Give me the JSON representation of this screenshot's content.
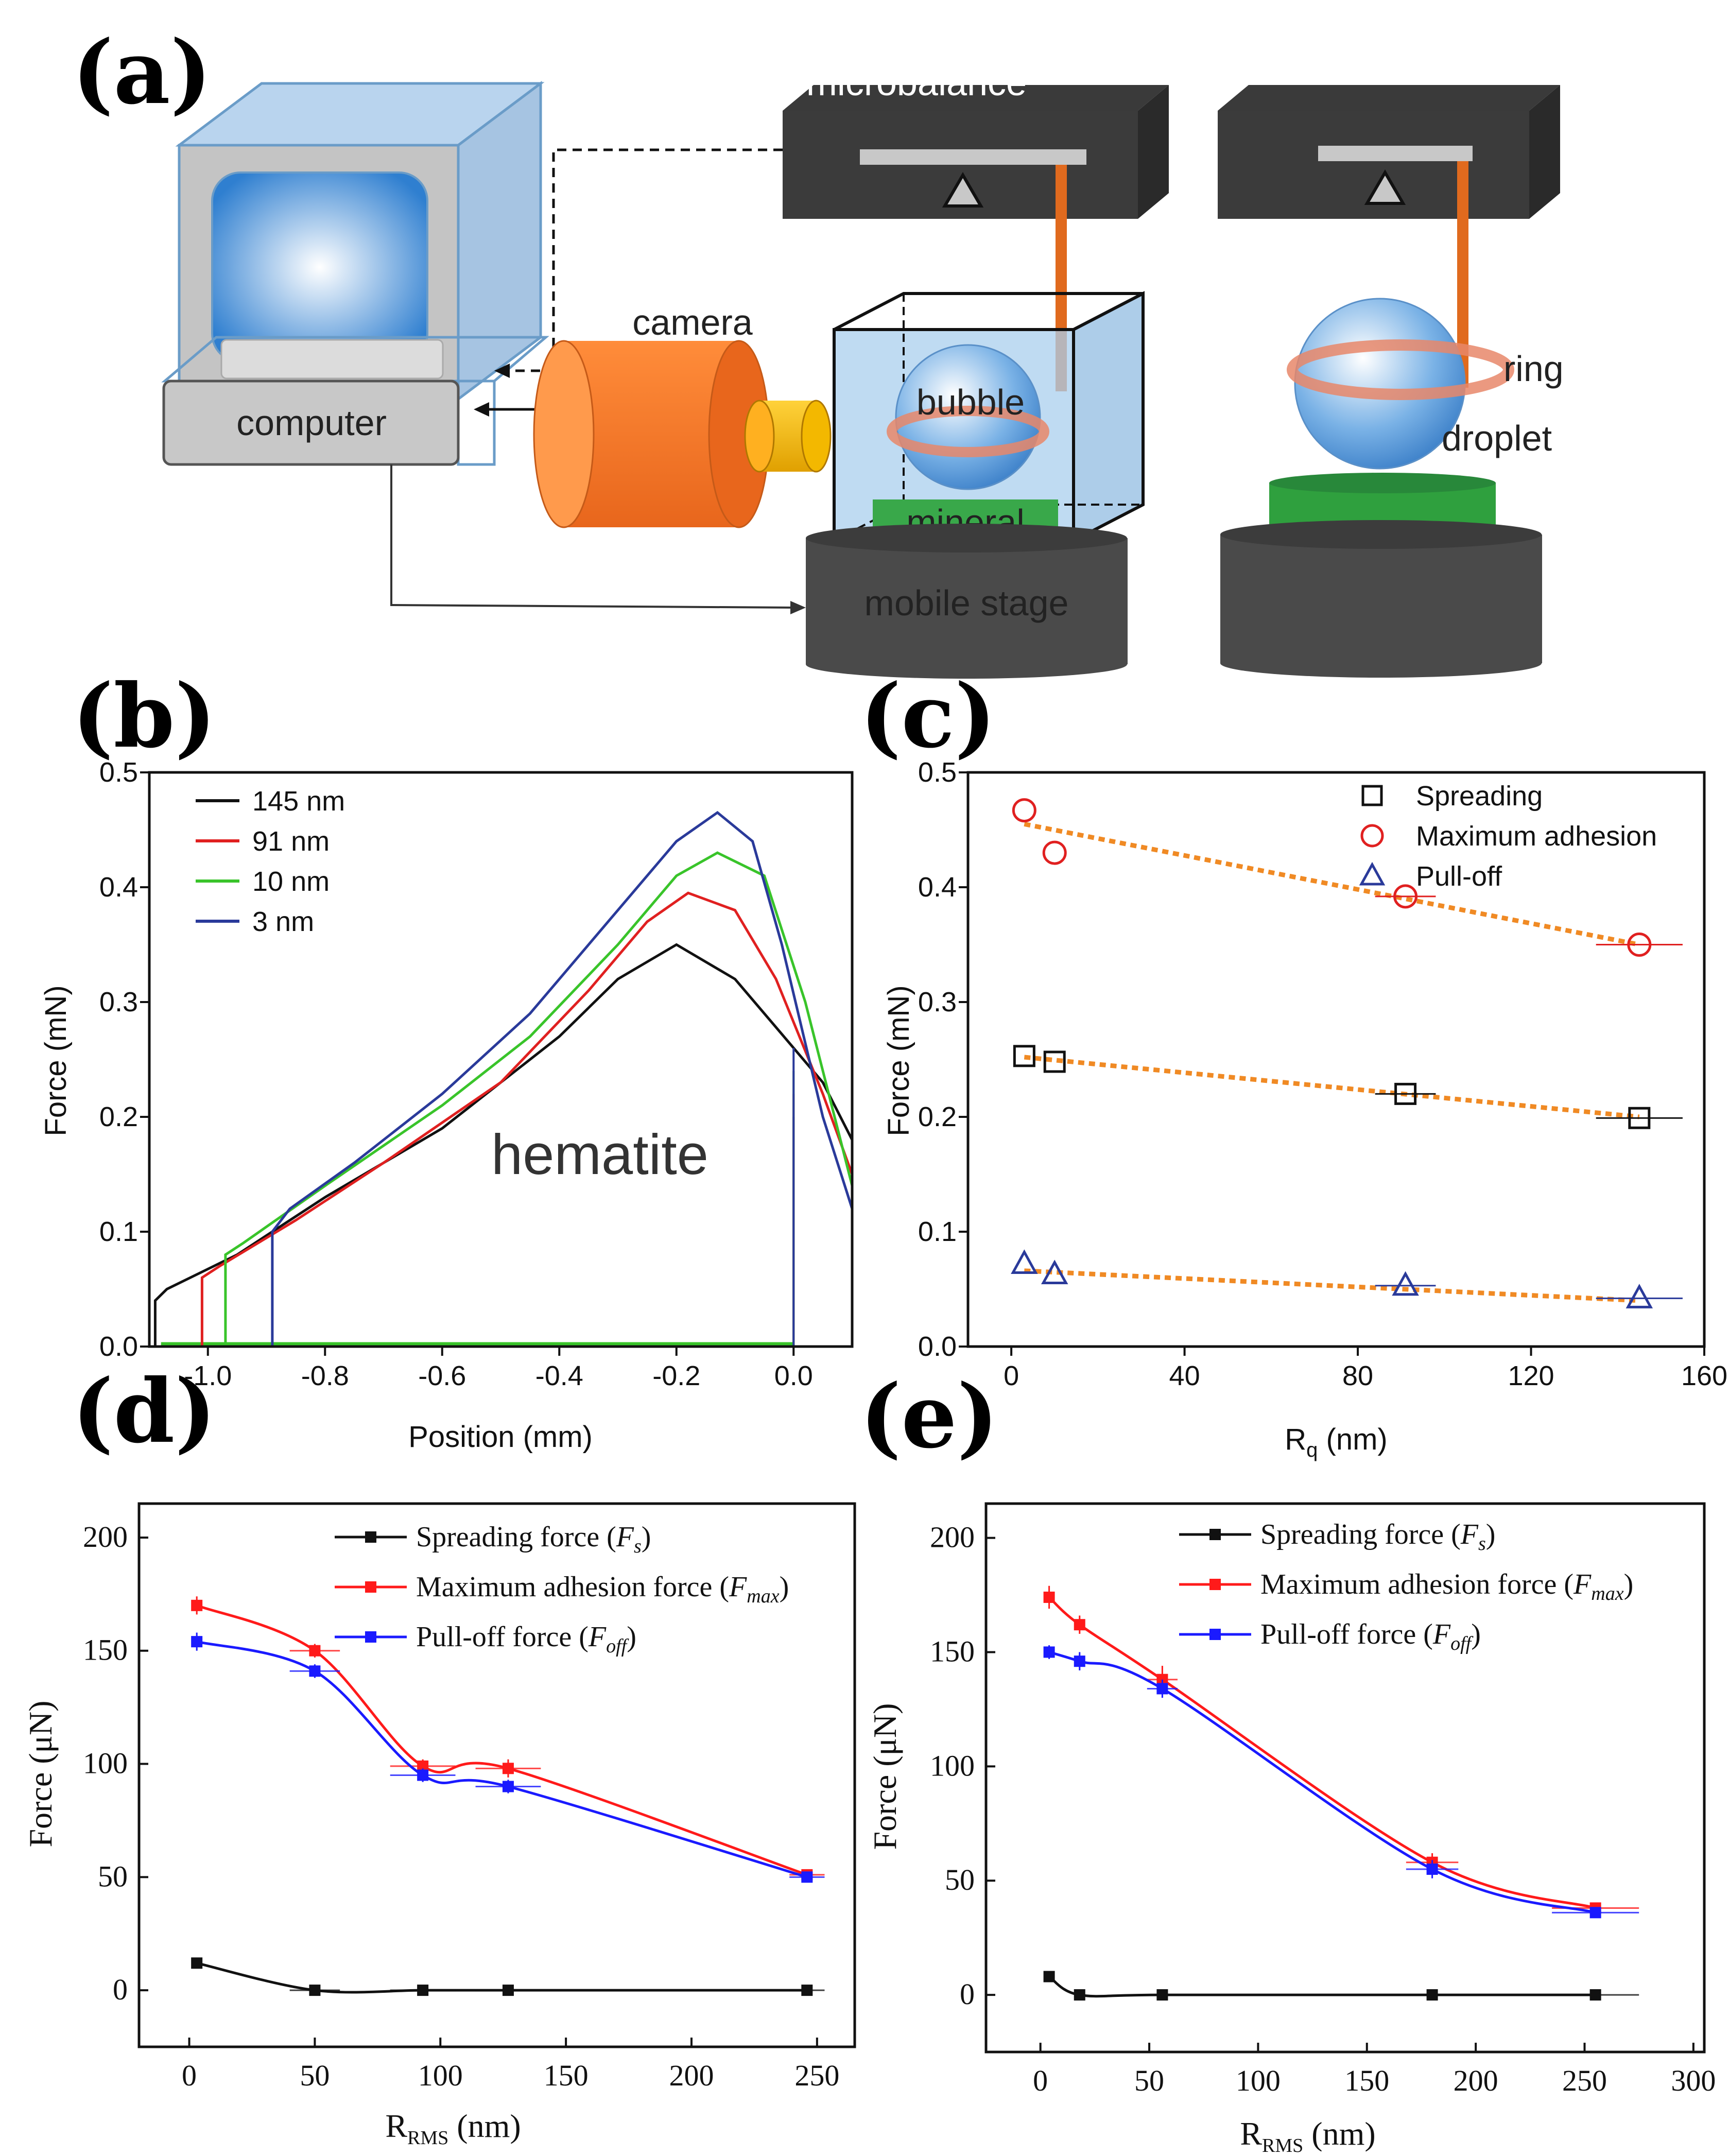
{
  "panels": {
    "a": "(a)",
    "b": "(b)",
    "c": "(c)",
    "d": "(d)",
    "e": "(e)"
  },
  "schematic": {
    "microbalance": "microbalance",
    "camera": "camera",
    "computer": "computer",
    "bubble": "bubble",
    "mineral": "mineral",
    "mobile_stage": "mobile stage",
    "ring": "ring",
    "droplet": "droplet"
  },
  "colors": {
    "black": "#111111",
    "red": "#e02020",
    "green": "#39c42a",
    "blue": "#2a3a9a",
    "orange": "#f08a24",
    "red_d": "#ff1a1a",
    "blue_d": "#1a1aff"
  },
  "chart_data": [
    {
      "id": "b",
      "type": "line",
      "xlabel": "Position (mm)",
      "ylabel": "Force (mN)",
      "xlim": [
        -1.1,
        0.1
      ],
      "ylim": [
        0,
        0.5
      ],
      "xticks": [
        "-1.0",
        "-0.8",
        "-0.6",
        "-0.4",
        "-0.2",
        "0.0"
      ],
      "xtick_values": [
        -1.0,
        -0.8,
        -0.6,
        -0.4,
        -0.2,
        0.0
      ],
      "yticks": [
        "0.0",
        "0.1",
        "0.2",
        "0.3",
        "0.4",
        "0.5"
      ],
      "ytick_values": [
        0.0,
        0.1,
        0.2,
        0.3,
        0.4,
        0.5
      ],
      "annotation": "hematite",
      "series": [
        {
          "name": "145 nm",
          "color": "#111111",
          "x": [
            -1.09,
            -1.09,
            -1.07,
            -0.95,
            -0.8,
            -0.6,
            -0.4,
            -0.3,
            -0.2,
            -0.1,
            0.0,
            0.05,
            0.1
          ],
          "y": [
            0.0,
            0.04,
            0.05,
            0.08,
            0.13,
            0.19,
            0.27,
            0.32,
            0.35,
            0.32,
            0.26,
            0.23,
            0.18
          ],
          "drop_x": 0.0,
          "drop_y": 0.2
        },
        {
          "name": "91 nm",
          "color": "#e02020",
          "x": [
            -1.01,
            -1.01,
            -0.98,
            -0.85,
            -0.7,
            -0.5,
            -0.35,
            -0.25,
            -0.18,
            -0.1,
            -0.03,
            0.05,
            0.1
          ],
          "y": [
            0.0,
            0.06,
            0.07,
            0.11,
            0.16,
            0.23,
            0.31,
            0.37,
            0.395,
            0.38,
            0.32,
            0.22,
            0.15
          ],
          "drop_x": 0.0,
          "drop_y": 0.22
        },
        {
          "name": "10 nm",
          "color": "#39c42a",
          "x": [
            -0.97,
            -0.97,
            -0.94,
            -0.8,
            -0.6,
            -0.45,
            -0.3,
            -0.2,
            -0.13,
            -0.05,
            0.02,
            0.07,
            0.1
          ],
          "y": [
            0.0,
            0.08,
            0.09,
            0.14,
            0.21,
            0.27,
            0.35,
            0.41,
            0.43,
            0.41,
            0.3,
            0.2,
            0.14
          ],
          "drop_x": 0.0,
          "drop_y": 0.24
        },
        {
          "name": "3 nm",
          "color": "#2a3a9a",
          "x": [
            -0.89,
            -0.89,
            -0.86,
            -0.75,
            -0.6,
            -0.45,
            -0.3,
            -0.2,
            -0.13,
            -0.07,
            -0.02,
            0.05,
            0.1
          ],
          "y": [
            0.0,
            0.1,
            0.12,
            0.16,
            0.22,
            0.29,
            0.38,
            0.44,
            0.465,
            0.44,
            0.35,
            0.2,
            0.12
          ],
          "drop_x": 0.0,
          "drop_y": 0.26
        }
      ]
    },
    {
      "id": "c",
      "type": "scatter",
      "xlabel": "R",
      "xlabel_sub": "q",
      "xlabel_unit": " (nm)",
      "ylabel": "Force (mN)",
      "xlim": [
        -10,
        160
      ],
      "ylim": [
        0,
        0.5
      ],
      "xticks": [
        "0",
        "40",
        "80",
        "120",
        "160"
      ],
      "xtick_values": [
        0,
        40,
        80,
        120,
        160
      ],
      "yticks": [
        "0.0",
        "0.1",
        "0.2",
        "0.3",
        "0.4",
        "0.5"
      ],
      "ytick_values": [
        0.0,
        0.1,
        0.2,
        0.3,
        0.4,
        0.5
      ],
      "series": [
        {
          "name": "Spreading",
          "marker": "square",
          "color": "#111111",
          "x": [
            3,
            10,
            91,
            145
          ],
          "y": [
            0.253,
            0.248,
            0.22,
            0.199
          ],
          "xerr": [
            0,
            0,
            7,
            10
          ],
          "fit": [
            [
              3,
              0.252
            ],
            [
              145,
              0.2
            ]
          ]
        },
        {
          "name": "Maximum adhesion",
          "marker": "circle",
          "color": "#e02020",
          "x": [
            3,
            10,
            91,
            145
          ],
          "y": [
            0.467,
            0.43,
            0.392,
            0.35
          ],
          "xerr": [
            0,
            0,
            7,
            10
          ],
          "fit": [
            [
              3,
              0.455
            ],
            [
              145,
              0.35
            ]
          ]
        },
        {
          "name": "Pull-off",
          "marker": "triangle",
          "color": "#2a3a9a",
          "x": [
            3,
            10,
            91,
            145
          ],
          "y": [
            0.072,
            0.063,
            0.053,
            0.042
          ],
          "xerr": [
            0,
            0,
            7,
            10
          ],
          "fit": [
            [
              3,
              0.066
            ],
            [
              145,
              0.04
            ]
          ]
        }
      ],
      "fit_color": "#f08a24"
    },
    {
      "id": "d",
      "type": "line",
      "xlabel": "R",
      "xlabel_sub": "RMS",
      "xlabel_unit": " (nm)",
      "ylabel": "Force (μN)",
      "xlim": [
        -20,
        265
      ],
      "ylim": [
        -25,
        215
      ],
      "xticks": [
        "0",
        "50",
        "100",
        "150",
        "200",
        "250"
      ],
      "xtick_values": [
        0,
        50,
        100,
        150,
        200,
        250
      ],
      "yticks": [
        "0",
        "50",
        "100",
        "150",
        "200"
      ],
      "ytick_values": [
        0,
        50,
        100,
        150,
        200
      ],
      "series": [
        {
          "name": "Spreading force (",
          "sym": "F",
          "sub": "s",
          "color": "#111111",
          "x": [
            3,
            50,
            93,
            127,
            246
          ],
          "y": [
            12,
            0,
            0,
            0,
            0
          ],
          "xerr": [
            0,
            10,
            13,
            13,
            7
          ],
          "yerr": [
            0,
            0,
            0,
            0,
            0
          ]
        },
        {
          "name": "Maximum adhesion force (",
          "sym": "F",
          "sub": "max",
          "color": "#ff1a1a",
          "x": [
            3,
            50,
            93,
            127,
            246
          ],
          "y": [
            170,
            150,
            99,
            98,
            51
          ],
          "xerr": [
            0,
            10,
            13,
            13,
            7
          ],
          "yerr": [
            4,
            3,
            3,
            4,
            2
          ]
        },
        {
          "name": "Pull-off force (",
          "sym": "F",
          "sub": "off",
          "color": "#1a1aff",
          "x": [
            3,
            50,
            93,
            127,
            246
          ],
          "y": [
            154,
            141,
            95,
            90,
            50
          ],
          "xerr": [
            0,
            10,
            13,
            13,
            7
          ],
          "yerr": [
            4,
            3,
            3,
            3,
            2
          ]
        }
      ]
    },
    {
      "id": "e",
      "type": "line",
      "xlabel": "R",
      "xlabel_sub": "RMS",
      "xlabel_unit": " (nm)",
      "ylabel": "Force (μN)",
      "xlim": [
        -25,
        305
      ],
      "ylim": [
        -25,
        215
      ],
      "xticks": [
        "0",
        "50",
        "100",
        "150",
        "200",
        "250",
        "300"
      ],
      "xtick_values": [
        0,
        50,
        100,
        150,
        200,
        250,
        300
      ],
      "yticks": [
        "0",
        "50",
        "100",
        "150",
        "200"
      ],
      "ytick_values": [
        0,
        50,
        100,
        150,
        200
      ],
      "series": [
        {
          "name": "Spreading force (",
          "sym": "F",
          "sub": "s",
          "color": "#111111",
          "x": [
            4,
            18,
            56,
            180,
            255
          ],
          "y": [
            8,
            0,
            0,
            0,
            0
          ],
          "xerr": [
            0,
            0,
            7,
            12,
            20
          ],
          "yerr": [
            0,
            0,
            0,
            0,
            0
          ]
        },
        {
          "name": "Maximum adhesion force (",
          "sym": "F",
          "sub": "max",
          "color": "#ff1a1a",
          "x": [
            4,
            18,
            56,
            180,
            255
          ],
          "y": [
            174,
            162,
            138,
            58,
            38
          ],
          "xerr": [
            0,
            0,
            7,
            12,
            20
          ],
          "yerr": [
            5,
            4,
            6,
            4,
            2
          ]
        },
        {
          "name": "Pull-off force (",
          "sym": "F",
          "sub": "off",
          "color": "#1a1aff",
          "x": [
            4,
            18,
            56,
            180,
            255
          ],
          "y": [
            150,
            146,
            134,
            55,
            36
          ],
          "xerr": [
            0,
            0,
            7,
            12,
            20
          ],
          "yerr": [
            3,
            4,
            4,
            4,
            2
          ]
        }
      ]
    }
  ]
}
